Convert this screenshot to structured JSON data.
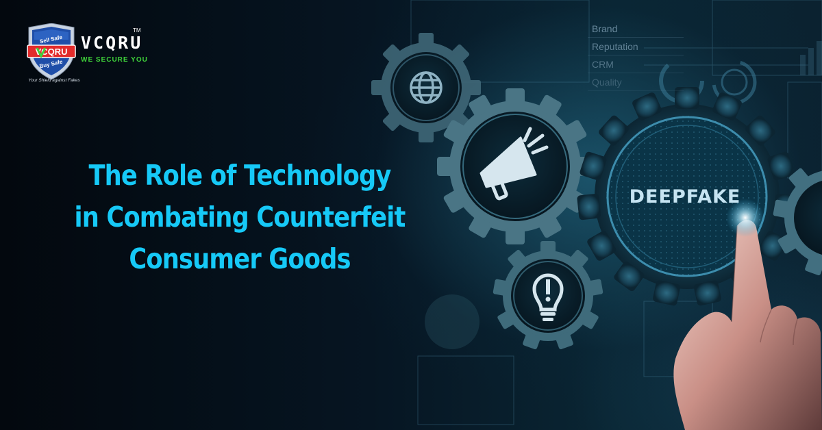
{
  "logo": {
    "brand": "VCQRU",
    "trademark": "TM",
    "tagline": "WE SECURE YOU",
    "badge_top": "Sell Safe",
    "badge_center": "VCQRU",
    "badge_bottom": "Buy Safe",
    "shield_tagline": "Your Shield against Fakes"
  },
  "headline": {
    "line1": "The Role of Technology",
    "line2": "in Combating Counterfeit",
    "line3": "Consumer Goods"
  },
  "background": {
    "panel_items": [
      "Brand",
      "Reputation",
      "CRM",
      "Quality"
    ],
    "center_gear_label": "DEEPFAKE",
    "icons": [
      "globe-icon",
      "megaphone-icon",
      "lightbulb-icon",
      "hand-pointing-icon"
    ]
  },
  "colors": {
    "headline": "#16c9f7",
    "tagline": "#3fd23a",
    "brand_red": "#e32b2b",
    "shield_blue": "#1f4ea8"
  }
}
